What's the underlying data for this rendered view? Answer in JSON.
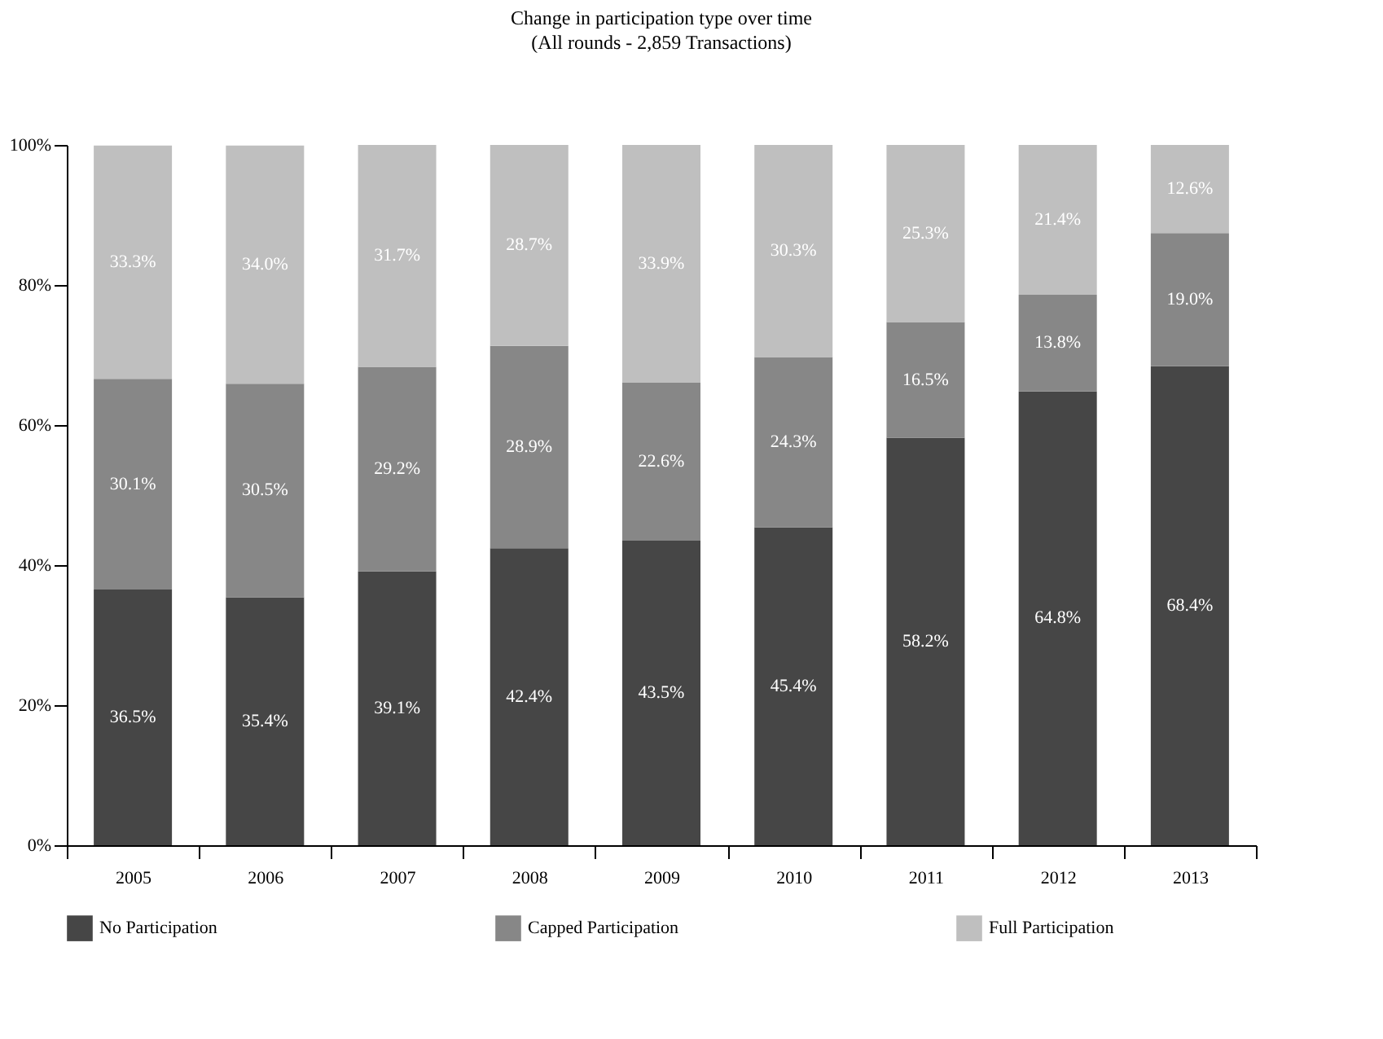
{
  "chart_data": {
    "type": "bar",
    "stacked": true,
    "title": "Change in participation type over time",
    "subtitle": "(All rounds - 2,859 Transactions)",
    "categories": [
      "2005",
      "2006",
      "2007",
      "2008",
      "2009",
      "2010",
      "2011",
      "2012",
      "2013"
    ],
    "series": [
      {
        "name": "No Participation",
        "color": "#464646",
        "values": [
          36.5,
          35.4,
          39.1,
          42.4,
          43.5,
          45.4,
          58.2,
          64.8,
          68.4
        ],
        "value_labels": [
          "36.5%",
          "35.4%",
          "39.1%",
          "42.4%",
          "43.5%",
          "45.4%",
          "58.2%",
          "64.8%",
          "68.4%"
        ]
      },
      {
        "name": "Capped Participation",
        "color": "#878787",
        "values": [
          30.1,
          30.5,
          29.2,
          28.9,
          22.6,
          24.3,
          16.5,
          13.8,
          19.0
        ],
        "value_labels": [
          "30.1%",
          "30.5%",
          "29.2%",
          "28.9%",
          "22.6%",
          "24.3%",
          "16.5%",
          "13.8%",
          "19.0%"
        ]
      },
      {
        "name": "Full Participation",
        "color": "#bfbfbf",
        "values": [
          33.3,
          34.0,
          31.7,
          28.7,
          33.9,
          30.3,
          25.3,
          21.4,
          12.6
        ],
        "value_labels": [
          "33.3%",
          "34.0%",
          "31.7%",
          "28.7%",
          "33.9%",
          "30.3%",
          "25.3%",
          "21.4%",
          "12.6%"
        ]
      }
    ],
    "ylim": [
      0,
      100
    ],
    "yticks": [
      {
        "value": 0,
        "label": "0%"
      },
      {
        "value": 20,
        "label": "20%"
      },
      {
        "value": 40,
        "label": "40%"
      },
      {
        "value": 60,
        "label": "60%"
      },
      {
        "value": 80,
        "label": "80%"
      },
      {
        "value": 100,
        "label": "100%"
      }
    ],
    "grid": false,
    "legend": "bottom"
  }
}
